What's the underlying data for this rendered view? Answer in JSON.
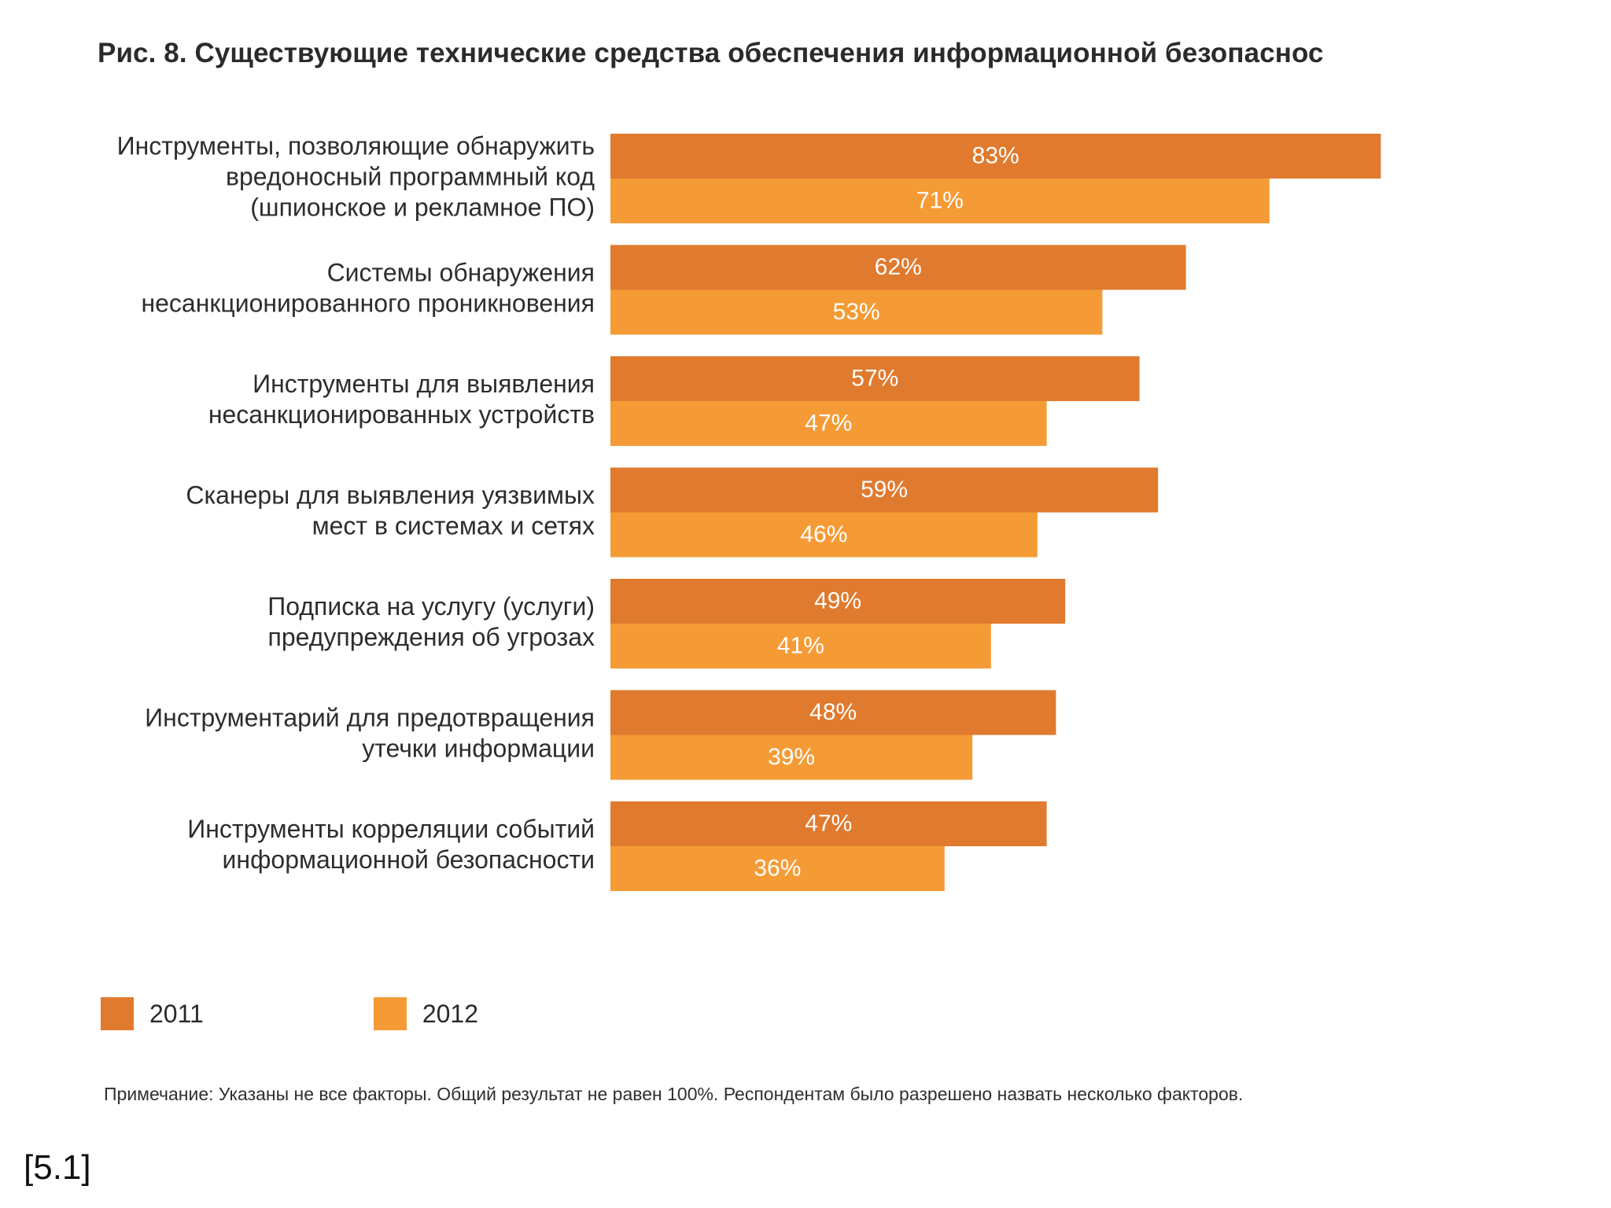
{
  "colors": {
    "series_2011": "#e07a2e",
    "series_2012": "#f59b36",
    "bar_text": "#ffffff"
  },
  "legend": {
    "items": [
      {
        "label": "2011"
      },
      {
        "label": "2012"
      }
    ]
  },
  "note": "Примечание: Указаны не все факторы. Общий результат не равен 100%. Респондентам было разрешено назвать несколько факторов.",
  "ref": "[5.1]",
  "chart_data": {
    "type": "bar",
    "orientation": "horizontal",
    "title": "Рис. 8. Существующие технические средства обеспечения информационной безопаснос",
    "categories": [
      [
        "Инструменты, позволяющие обнаружить",
        "вредоносный программный код",
        "(шпионское и рекламное ПО)"
      ],
      [
        "Системы обнаружения",
        "несанкционированного проникновения"
      ],
      [
        "Инструменты для выявления",
        "несанкционированных устройств"
      ],
      [
        "Сканеры для выявления уязвимых",
        "мест в системах и сетях"
      ],
      [
        "Подписка на услугу (услуги)",
        "предупреждения об угрозах"
      ],
      [
        "Инструментарий для предотвращения",
        "утечки информации"
      ],
      [
        "Инструменты корреляции событий",
        "информационной безопасности"
      ]
    ],
    "series": [
      {
        "name": "2011",
        "values": [
          83,
          62,
          57,
          59,
          49,
          48,
          47
        ],
        "labels": [
          "83%",
          "62%",
          "57%",
          "59%",
          "49%",
          "48%",
          "47%"
        ]
      },
      {
        "name": "2012",
        "values": [
          71,
          53,
          47,
          46,
          41,
          39,
          36
        ],
        "labels": [
          "71%",
          "53%",
          "47%",
          "46%",
          "41%",
          "39%",
          "36%"
        ]
      }
    ],
    "xlim": [
      0,
      100
    ],
    "grid": false,
    "legend_position": "bottom-left"
  }
}
